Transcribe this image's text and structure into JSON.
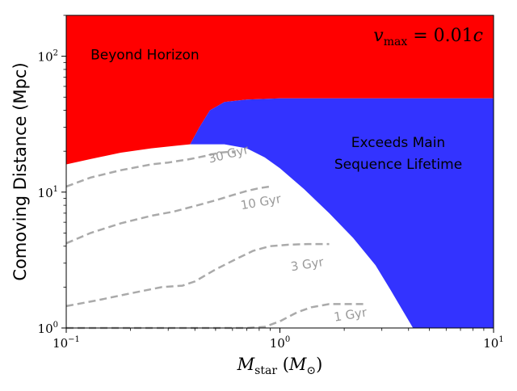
{
  "chart_data": {
    "type": "area",
    "x_scale": "log",
    "y_scale": "log",
    "xlim": [
      0.1,
      10
    ],
    "ylim": [
      1,
      200
    ],
    "xlabel": "M_star (M_⊙)",
    "ylabel": "Comoving Distance (Mpc)",
    "x_ticks": [
      {
        "value": 0.1,
        "base": "10",
        "exp": "−1"
      },
      {
        "value": 1,
        "base": "10",
        "exp": "0"
      },
      {
        "value": 10,
        "base": "10",
        "exp": "1"
      }
    ],
    "y_ticks": [
      {
        "value": 1,
        "base": "10",
        "exp": "0"
      },
      {
        "value": 10,
        "base": "10",
        "exp": "1"
      },
      {
        "value": 100,
        "base": "10",
        "exp": "2"
      }
    ],
    "annotation": "v_max = 0.01c",
    "regions": [
      {
        "name": "Beyond Horizon",
        "color": "#ff0000",
        "label_pos_data": [
          0.13,
          95
        ],
        "lower_boundary": {
          "x": [
            0.1,
            0.13,
            0.18,
            0.25,
            0.33,
            0.38
          ],
          "y": [
            16,
            17.5,
            19.5,
            21,
            22,
            22.5
          ]
        }
      },
      {
        "name": "Exceeds Main Sequence Lifetime",
        "label_lines": [
          "Exceeds Main",
          "Sequence Lifetime"
        ],
        "color": "#3333ff",
        "upper_boundary": {
          "x": [
            0.38,
            0.42,
            0.47,
            0.55,
            0.7,
            1.0,
            2.0,
            5.0,
            10.0
          ],
          "y": [
            22.5,
            30,
            40,
            46,
            48,
            49,
            49,
            49,
            49
          ]
        },
        "lower_boundary": {
          "x": [
            0.38,
            0.55,
            0.7,
            0.85,
            1.0,
            1.3,
            1.7,
            2.2,
            2.8,
            3.3,
            3.8,
            4.2,
            10.0
          ],
          "y": [
            22.5,
            22.5,
            21,
            18,
            15,
            10.5,
            7,
            4.6,
            2.9,
            1.9,
            1.3,
            1.0,
            1.0
          ]
        }
      }
    ],
    "series": [
      {
        "name": "30 Gyr",
        "color": "#aaaaaa",
        "x": [
          0.1,
          0.13,
          0.18,
          0.25,
          0.3,
          0.38,
          0.45,
          0.52,
          0.62
        ],
        "y": [
          11,
          12.8,
          14.5,
          16,
          16.5,
          17.5,
          18.5,
          19.5,
          20
        ]
      },
      {
        "name": "10 Gyr",
        "color": "#aaaaaa",
        "x": [
          0.1,
          0.13,
          0.18,
          0.25,
          0.32,
          0.4,
          0.5,
          0.6,
          0.7,
          0.8,
          0.9
        ],
        "y": [
          4.2,
          5.0,
          5.9,
          6.7,
          7.2,
          7.9,
          8.7,
          9.5,
          10.2,
          10.7,
          11
        ]
      },
      {
        "name": "3 Gyr",
        "color": "#aaaaaa",
        "x": [
          0.1,
          0.14,
          0.2,
          0.28,
          0.35,
          0.4,
          0.5,
          0.62,
          0.75,
          0.9,
          1.1,
          1.35,
          1.7
        ],
        "y": [
          1.45,
          1.6,
          1.8,
          2.0,
          2.05,
          2.2,
          2.7,
          3.2,
          3.7,
          4.0,
          4.1,
          4.15,
          4.15
        ]
      },
      {
        "name": "1 Gyr",
        "color": "#aaaaaa",
        "x": [
          0.1,
          0.3,
          0.5,
          0.7,
          0.85,
          1.0,
          1.2,
          1.4,
          1.7,
          2.1,
          2.5
        ],
        "y": [
          1.0,
          1.0,
          1.0,
          1.0,
          1.02,
          1.12,
          1.3,
          1.42,
          1.5,
          1.5,
          1.5
        ]
      }
    ],
    "series_label_pos_data": [
      {
        "name": "30 Gyr",
        "x": 0.58,
        "y": 17.8,
        "angle": -14
      },
      {
        "name": "10 Gyr",
        "x": 0.82,
        "y": 7.9,
        "angle": -10
      },
      {
        "name": "3 Gyr",
        "x": 1.35,
        "y": 2.75,
        "angle": -9
      },
      {
        "name": "1 Gyr",
        "x": 2.15,
        "y": 1.17,
        "angle": -9
      }
    ]
  }
}
